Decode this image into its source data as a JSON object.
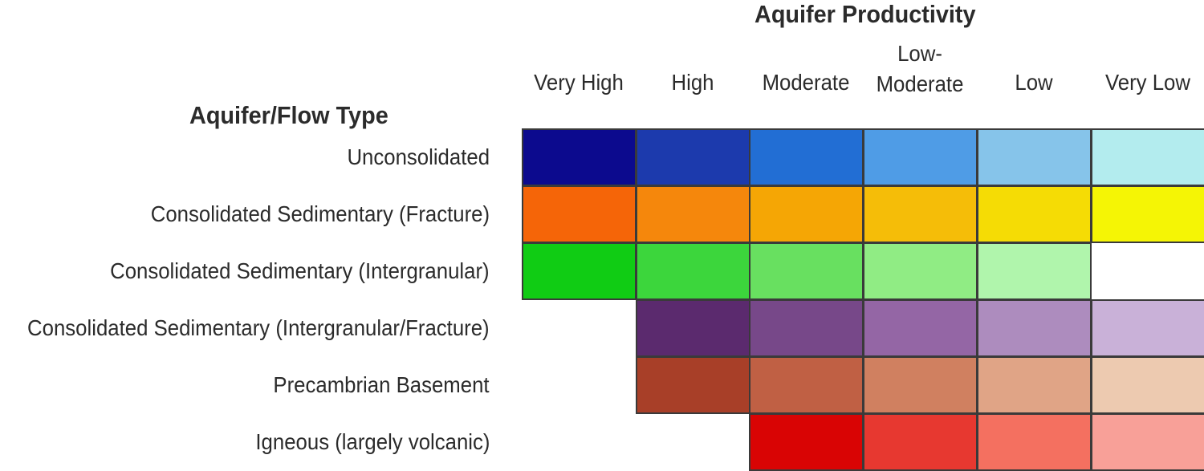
{
  "titles": {
    "productivity": "Aquifer Productivity",
    "flow_type": "Aquifer/Flow Type"
  },
  "columns": [
    {
      "lines": [
        "Very High"
      ]
    },
    {
      "lines": [
        "High"
      ]
    },
    {
      "lines": [
        "Moderate"
      ]
    },
    {
      "lines": [
        "Low-",
        "Moderate"
      ]
    },
    {
      "lines": [
        "Low"
      ]
    },
    {
      "lines": [
        "Very Low"
      ]
    }
  ],
  "rows": [
    {
      "label": "Unconsolidated",
      "colors": [
        "#0c0a8e",
        "#1c3aad",
        "#226ed4",
        "#4f9ce6",
        "#86c4ea",
        "#b3ecee"
      ]
    },
    {
      "label": "Consolidated Sedimentary (Fracture)",
      "colors": [
        "#f56508",
        "#f5870c",
        "#f5a605",
        "#f5bd08",
        "#f5dc05",
        "#f5f505"
      ]
    },
    {
      "label": "Consolidated Sedimentary (Intergranular)",
      "colors": [
        "#10cc14",
        "#3cd63c",
        "#68e060",
        "#90ec84",
        "#b0f5ac",
        null
      ]
    },
    {
      "label": "Consolidated Sedimentary (Intergranular/Fracture)",
      "colors": [
        null,
        "#5b2a6e",
        "#774889",
        "#9466a5",
        "#ad8cbe",
        "#c9b1d8"
      ]
    },
    {
      "label": "Precambrian Basement",
      "colors": [
        null,
        "#a83f28",
        "#c06044",
        "#d08060",
        "#e0a486",
        "#edcab0"
      ]
    },
    {
      "label": "Igneous (largely volcanic)",
      "colors": [
        null,
        null,
        "#d90404",
        "#e73830",
        "#f47060",
        "#f8a098"
      ]
    }
  ]
}
